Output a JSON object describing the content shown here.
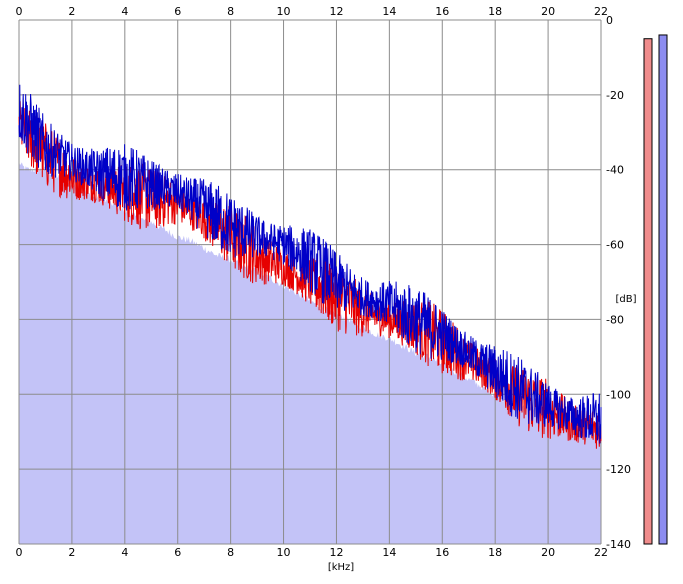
{
  "window": {
    "background": "#ffffff"
  },
  "chart_data": {
    "type": "line",
    "title": "",
    "xlabel": "[kHz]",
    "ylabel": "[dB]",
    "xlim": [
      0,
      22
    ],
    "ylim": [
      -140,
      0
    ],
    "x_ticks": [
      "0",
      "2",
      "4",
      "6",
      "8",
      "10",
      "12",
      "14",
      "16",
      "18",
      "20",
      "22"
    ],
    "y_ticks": [
      "0",
      "-20",
      "-40",
      "-60",
      "-80",
      "-100",
      "-120",
      "-140"
    ],
    "grid": true,
    "legend": "none",
    "colors": {
      "plot_background": "#ffffff",
      "fill": "#c3c3f7",
      "grid": "#8c8c8c",
      "series_red": "#e60000",
      "series_blue": "#0000c8",
      "level_red": "#f08c8c",
      "level_blue": "#8c8cf0"
    },
    "fill_envelope": {
      "x": [
        0,
        0.1,
        0.3,
        0.5,
        0.8,
        1,
        1.5,
        2,
        2.5,
        3,
        3.5,
        4,
        4.5,
        5,
        5.5,
        6,
        6.5,
        7,
        7.5,
        8,
        8.5,
        9,
        9.5,
        10,
        10.5,
        11,
        11.5,
        12,
        12.5,
        13,
        13.5,
        14,
        14.5,
        15,
        15.5,
        16,
        16.5,
        17,
        17.5,
        18,
        18.5,
        19,
        19.5,
        20,
        20.5,
        21,
        21.5,
        22
      ],
      "y": [
        -38,
        -39,
        -40,
        -40,
        -40,
        -40,
        -42,
        -44,
        -46,
        -48,
        -49,
        -51,
        -53,
        -54,
        -56,
        -58,
        -59,
        -61,
        -63,
        -64,
        -66,
        -67,
        -69,
        -71,
        -73,
        -75,
        -77,
        -79,
        -80,
        -82,
        -84,
        -85,
        -87,
        -89,
        -90,
        -92,
        -94,
        -96,
        -98,
        -100,
        -102,
        -103,
        -104,
        -106,
        -107,
        -108,
        -108,
        -109
      ]
    },
    "series": [
      {
        "color": "#e60000",
        "x": [
          0,
          1,
          2,
          3,
          4,
          5,
          6,
          7,
          8,
          9,
          10,
          11,
          12,
          13,
          14,
          15,
          16,
          17,
          18,
          19,
          20,
          21,
          22
        ],
        "y": [
          -28,
          -36,
          -42,
          -44,
          -46,
          -48,
          -49,
          -53,
          -58,
          -63,
          -66,
          -70,
          -74,
          -78,
          -80,
          -82,
          -86,
          -91,
          -96,
          -101,
          -104,
          -108,
          -109
        ]
      },
      {
        "color": "#0000c8",
        "x": [
          0,
          1,
          2,
          3,
          4,
          5,
          6,
          7,
          8,
          9,
          10,
          11,
          12,
          13,
          14,
          15,
          16,
          17,
          18,
          19,
          20,
          21,
          22
        ],
        "y": [
          -24,
          -34,
          -38,
          -41,
          -42,
          -44,
          -46,
          -50,
          -55,
          -58,
          -60,
          -64,
          -70,
          -74,
          -76,
          -80,
          -84,
          -89,
          -94,
          -99,
          -103,
          -106,
          -107
        ]
      }
    ],
    "channel_levels": [
      {
        "color": "#f08c8c",
        "top_db": -5,
        "bottom_db": -140
      },
      {
        "color": "#8c8cf0",
        "top_db": -4,
        "bottom_db": -140
      }
    ]
  }
}
